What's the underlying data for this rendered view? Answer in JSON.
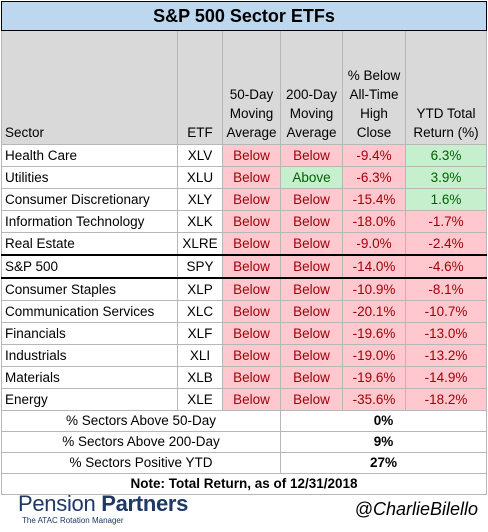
{
  "title": "S&P 500 Sector ETFs",
  "headers": {
    "sector": "Sector",
    "etf": "ETF",
    "ma50": "50-Day Moving Average",
    "ma200": "200-Day Moving Average",
    "ath": "% Below All-Time High Close",
    "ytd": "YTD Total Return (%)"
  },
  "rows": [
    {
      "sector": "Health Care",
      "etf": "XLV",
      "ma50": "Below",
      "ma200": "Below",
      "ath": "-9.4%",
      "ytd": "6.3%"
    },
    {
      "sector": "Utilities",
      "etf": "XLU",
      "ma50": "Below",
      "ma200": "Above",
      "ath": "-6.3%",
      "ytd": "3.9%"
    },
    {
      "sector": "Consumer Discretionary",
      "etf": "XLY",
      "ma50": "Below",
      "ma200": "Below",
      "ath": "-15.4%",
      "ytd": "1.6%"
    },
    {
      "sector": "Information Technology",
      "etf": "XLK",
      "ma50": "Below",
      "ma200": "Below",
      "ath": "-18.0%",
      "ytd": "-1.7%"
    },
    {
      "sector": "Real Estate",
      "etf": "XLRE",
      "ma50": "Below",
      "ma200": "Below",
      "ath": "-9.0%",
      "ytd": "-2.4%"
    },
    {
      "sector": "S&P 500",
      "etf": "SPY",
      "ma50": "Below",
      "ma200": "Below",
      "ath": "-14.0%",
      "ytd": "-4.6%"
    },
    {
      "sector": "Consumer Staples",
      "etf": "XLP",
      "ma50": "Below",
      "ma200": "Below",
      "ath": "-10.9%",
      "ytd": "-8.1%"
    },
    {
      "sector": "Communication Services",
      "etf": "XLC",
      "ma50": "Below",
      "ma200": "Below",
      "ath": "-20.1%",
      "ytd": "-10.7%"
    },
    {
      "sector": "Financials",
      "etf": "XLF",
      "ma50": "Below",
      "ma200": "Below",
      "ath": "-19.6%",
      "ytd": "-13.0%"
    },
    {
      "sector": "Industrials",
      "etf": "XLI",
      "ma50": "Below",
      "ma200": "Below",
      "ath": "-19.0%",
      "ytd": "-13.2%"
    },
    {
      "sector": "Materials",
      "etf": "XLB",
      "ma50": "Below",
      "ma200": "Below",
      "ath": "-19.6%",
      "ytd": "-14.9%"
    },
    {
      "sector": "Energy",
      "etf": "XLE",
      "ma50": "Below",
      "ma200": "Below",
      "ath": "-35.6%",
      "ytd": "-18.2%"
    }
  ],
  "summary": [
    {
      "label": "% Sectors Above 50-Day",
      "value": "0%"
    },
    {
      "label": "% Sectors Above 200-Day",
      "value": "9%"
    },
    {
      "label": "% Sectors Positive YTD",
      "value": "27%"
    }
  ],
  "note": "Note: Total Return, as of 12/31/2018",
  "footer": {
    "logo_word1": "Pension",
    "logo_word2": "Partners",
    "logo_tagline": "The ATAC Rotation Manager",
    "handle": "@CharlieBilello"
  },
  "colors": {
    "title_bg": "#bdd7ee",
    "header_bg": "#d9d9d9",
    "negative_bg": "#ffc7ce",
    "negative_text": "#9c0006",
    "positive_bg": "#c6efce",
    "positive_text": "#006100",
    "brand_navy": "#1f3864"
  }
}
